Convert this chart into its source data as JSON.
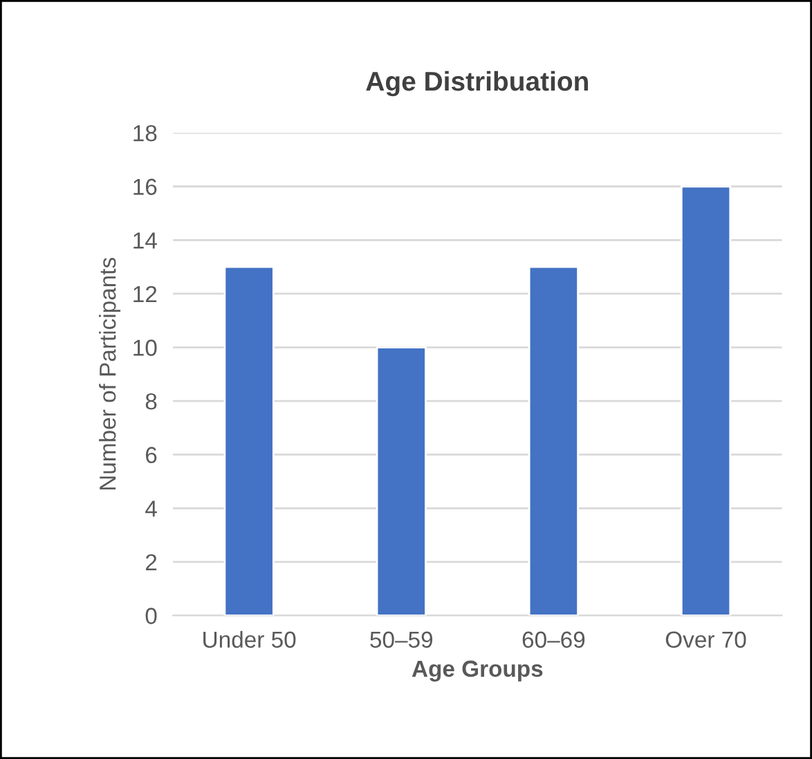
{
  "chart_data": {
    "type": "bar",
    "title": "Age Distribuation",
    "xlabel": "Age Groups",
    "ylabel": "Number of Participants",
    "categories": [
      "Under 50",
      "50–59",
      "60–69",
      "Over 70"
    ],
    "series": [
      {
        "color": "#4472c4",
        "values": [
          13,
          10,
          13,
          16
        ]
      }
    ],
    "ylim": [
      0,
      18
    ],
    "yticks": [
      0,
      2,
      4,
      6,
      8,
      10,
      12,
      14,
      16,
      18
    ],
    "grid": "y",
    "legend": false
  }
}
